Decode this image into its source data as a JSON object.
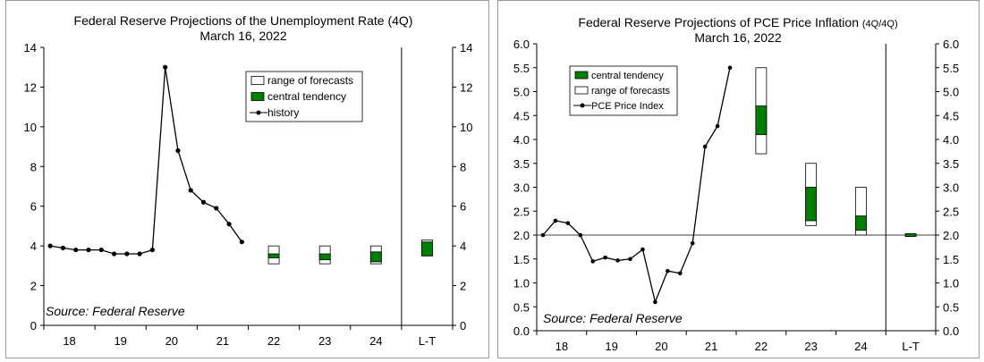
{
  "chart_data": [
    {
      "type": "line",
      "title": "Federal Reserve Projections of the Unemployment Rate (4Q)",
      "subtitle": "March 16, 2022",
      "x_categories": [
        "18",
        "19",
        "20",
        "21",
        "22",
        "23",
        "24",
        "L-T"
      ],
      "ylim": [
        0,
        14
      ],
      "yticks": [
        "0",
        "2",
        "4",
        "6",
        "8",
        "10",
        "12",
        "14"
      ],
      "grid": false,
      "legend_position": "top-right",
      "series": [
        {
          "name": "history",
          "x": [
            17.625,
            17.875,
            18.125,
            18.375,
            18.625,
            18.875,
            19.125,
            19.375,
            19.625,
            19.875,
            20.125,
            20.375,
            20.625,
            20.875,
            21.125,
            21.375
          ],
          "values": [
            4.0,
            3.9,
            3.8,
            3.8,
            3.8,
            3.6,
            3.6,
            3.6,
            3.8,
            13.0,
            8.8,
            6.8,
            6.2,
            5.9,
            5.1,
            4.2
          ]
        }
      ],
      "projections": [
        {
          "period": "22",
          "range": [
            3.1,
            4.0
          ],
          "central_tendency": [
            3.4,
            3.6
          ]
        },
        {
          "period": "23",
          "range": [
            3.1,
            4.0
          ],
          "central_tendency": [
            3.3,
            3.6
          ]
        },
        {
          "period": "24",
          "range": [
            3.1,
            4.0
          ],
          "central_tendency": [
            3.2,
            3.7
          ]
        },
        {
          "period": "L-T",
          "range": [
            3.5,
            4.3
          ],
          "central_tendency": [
            3.5,
            4.2
          ]
        }
      ],
      "legend": [
        "range of forecasts",
        "central tendency",
        "history"
      ],
      "source": "Source: Federal Reserve"
    },
    {
      "type": "line",
      "title": "Federal Reserve Projections of PCE Price Inflation",
      "title_suffix": "(4Q/4Q)",
      "subtitle": "March 16, 2022",
      "x_categories": [
        "18",
        "19",
        "20",
        "21",
        "22",
        "23",
        "24",
        "L-T"
      ],
      "ylim": [
        0,
        6
      ],
      "yticks": [
        "0.0",
        "0.5",
        "1.0",
        "1.5",
        "2.0",
        "2.5",
        "3.0",
        "3.5",
        "4.0",
        "4.5",
        "5.0",
        "5.5",
        "6.0"
      ],
      "grid": false,
      "reference_line": 2.0,
      "legend_position": "top-left",
      "series": [
        {
          "name": "PCE Price Index",
          "x": [
            17.625,
            17.875,
            18.125,
            18.375,
            18.625,
            18.875,
            19.125,
            19.375,
            19.625,
            19.875,
            20.125,
            20.375,
            20.625,
            20.875,
            21.125,
            21.375
          ],
          "values": [
            2.0,
            2.3,
            2.25,
            2.0,
            1.45,
            1.53,
            1.47,
            1.5,
            1.7,
            0.6,
            1.25,
            1.2,
            1.83,
            3.85,
            4.28,
            5.5
          ]
        }
      ],
      "projections": [
        {
          "period": "22",
          "range": [
            3.7,
            5.5
          ],
          "central_tendency": [
            4.1,
            4.7
          ]
        },
        {
          "period": "23",
          "range": [
            2.2,
            3.5
          ],
          "central_tendency": [
            2.3,
            3.0
          ]
        },
        {
          "period": "24",
          "range": [
            2.0,
            3.0
          ],
          "central_tendency": [
            2.1,
            2.4
          ]
        },
        {
          "period": "L-T",
          "range": [
            2.0,
            2.0
          ],
          "central_tendency": [
            2.0,
            2.0
          ]
        }
      ],
      "legend": [
        "central tendency",
        "range of forecasts",
        "PCE Price Index"
      ],
      "source": "Source: Federal Reserve"
    }
  ],
  "colors": {
    "central_tendency": "#008000",
    "range_fill": "#ffffff",
    "line": "#000000"
  }
}
